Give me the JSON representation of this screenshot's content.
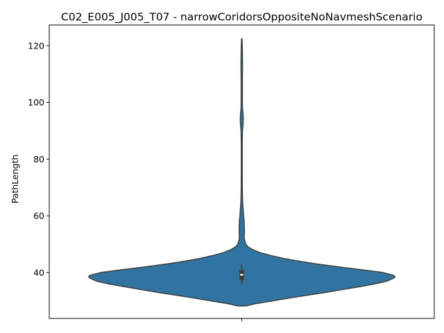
{
  "chart_data": {
    "type": "violin",
    "title": "C02_E005_J005_T07 - narrowCoridorsOppositeNoNavmeshScenario",
    "xlabel": "",
    "ylabel": "PathLength",
    "ylim": [
      23.8,
      127.3
    ],
    "yticks": [
      40,
      60,
      80,
      100,
      120
    ],
    "grid": false,
    "colors": {
      "violin_fill": "#3274a1",
      "violin_edge": "#3f3f3f",
      "box": "#3f3f3f",
      "median": "#ffffff"
    },
    "series": [
      {
        "min": 28.2,
        "max": 122.5,
        "q1": 37.4,
        "median": 39.2,
        "q3": 40.9,
        "whisker_low": 36.0,
        "whisker_high": 43.0,
        "density_profile": [
          [
            28.2,
            0.028
          ],
          [
            29.0,
            0.09
          ],
          [
            30.0,
            0.2
          ],
          [
            31.0,
            0.31
          ],
          [
            32.0,
            0.43
          ],
          [
            33.0,
            0.55
          ],
          [
            34.0,
            0.66
          ],
          [
            35.0,
            0.77
          ],
          [
            36.0,
            0.87
          ],
          [
            37.0,
            0.95
          ],
          [
            38.0,
            0.99
          ],
          [
            38.5,
            1.0
          ],
          [
            39.0,
            0.99
          ],
          [
            40.0,
            0.92
          ],
          [
            41.0,
            0.78
          ],
          [
            42.0,
            0.63
          ],
          [
            43.0,
            0.49
          ],
          [
            44.0,
            0.37
          ],
          [
            45.0,
            0.27
          ],
          [
            46.0,
            0.19
          ],
          [
            47.0,
            0.12
          ],
          [
            48.0,
            0.075
          ],
          [
            49.0,
            0.042
          ],
          [
            50.0,
            0.026
          ],
          [
            52.0,
            0.016
          ],
          [
            55.0,
            0.017
          ],
          [
            58.0,
            0.016
          ],
          [
            60.0,
            0.012
          ],
          [
            63.0,
            0.008
          ],
          [
            66.0,
            0.005
          ],
          [
            70.0,
            0.0035
          ],
          [
            75.0,
            0.003
          ],
          [
            80.0,
            0.003
          ],
          [
            85.0,
            0.003
          ],
          [
            88.0,
            0.004
          ],
          [
            90.0,
            0.005
          ],
          [
            92.0,
            0.008
          ],
          [
            94.0,
            0.01
          ],
          [
            96.0,
            0.008
          ],
          [
            98.0,
            0.005
          ],
          [
            100.0,
            0.004
          ],
          [
            104.0,
            0.004
          ],
          [
            108.0,
            0.004
          ],
          [
            112.0,
            0.005
          ],
          [
            115.0,
            0.005
          ],
          [
            118.0,
            0.004
          ],
          [
            120.0,
            0.003
          ],
          [
            122.5,
            0.0015
          ]
        ]
      }
    ]
  }
}
